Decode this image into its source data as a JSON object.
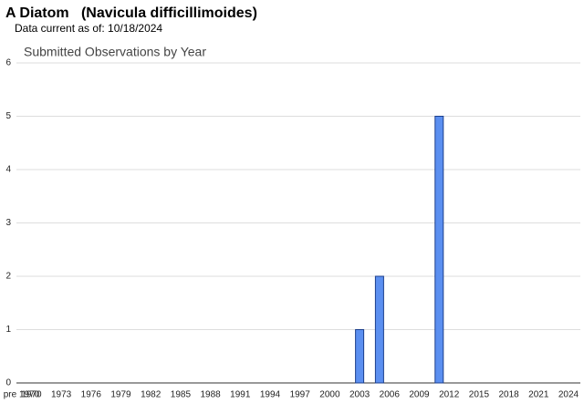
{
  "chart_data": {
    "type": "bar",
    "title": "A Diatom   (Navicula difficillimoides)",
    "subtitle": "Data current as of: 10/18/2024",
    "chart_title": "Submitted Observations by Year",
    "categories": [
      "pre 1970",
      "1970",
      null,
      null,
      "1973",
      null,
      null,
      "1976",
      null,
      null,
      "1979",
      null,
      null,
      "1982",
      null,
      null,
      "1985",
      null,
      null,
      "1988",
      null,
      null,
      "1991",
      null,
      null,
      "1994",
      null,
      null,
      "1997",
      null,
      null,
      "2000",
      null,
      null,
      "2003",
      null,
      null,
      "2006",
      null,
      null,
      "2009",
      null,
      null,
      "2012",
      null,
      null,
      "2015",
      null,
      null,
      "2018",
      null,
      null,
      "2021",
      null,
      null,
      "2024"
    ],
    "values": [
      0,
      0,
      0,
      0,
      0,
      0,
      0,
      0,
      0,
      0,
      0,
      0,
      0,
      0,
      0,
      0,
      0,
      0,
      0,
      0,
      0,
      0,
      0,
      0,
      0,
      0,
      0,
      0,
      0,
      0,
      0,
      0,
      0,
      0,
      1,
      0,
      2,
      0,
      0,
      0,
      0,
      0,
      5,
      0,
      0,
      0,
      0,
      0,
      0,
      0,
      0,
      0,
      0,
      0,
      0,
      0
    ],
    "color": "#5b8ff0",
    "ylim": [
      0,
      6
    ],
    "yticks": [
      0,
      1,
      2,
      3,
      4,
      5,
      6
    ],
    "grid": true
  }
}
